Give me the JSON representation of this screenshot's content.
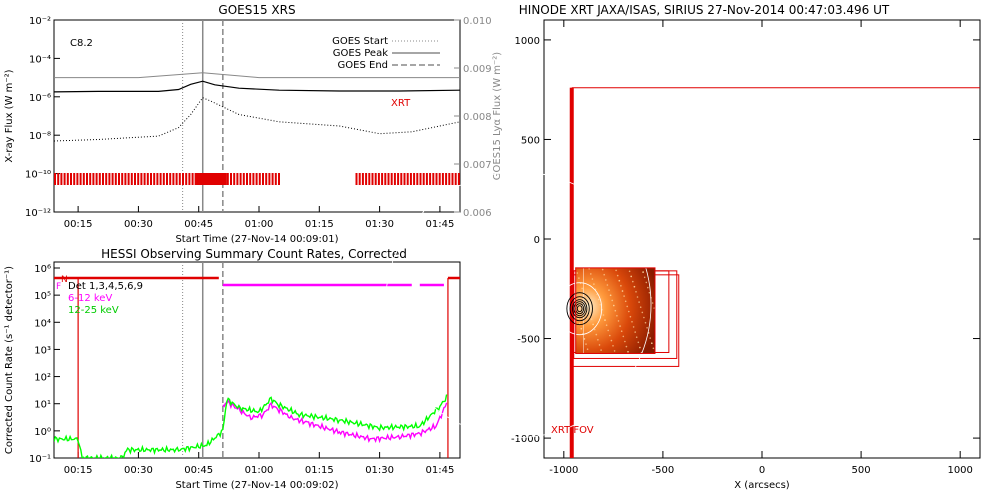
{
  "chart_data": [
    {
      "type": "line",
      "title": "GOES15 XRS",
      "xlabel": "Start Time (27-Nov-14 00:09:01)",
      "ylabel": "X-ray Flux (W m⁻²)",
      "y2label": "GOES15 Lyα Flux (W m⁻²)",
      "y_scale": "log",
      "ylim": [
        1e-12,
        0.01
      ],
      "y_ticks": [
        "10⁻²",
        "10⁻⁴",
        "10⁻⁶",
        "10⁻⁸",
        "10⁻¹⁰",
        "10⁻¹²"
      ],
      "y2lim": [
        0.006,
        0.01
      ],
      "y2_ticks": [
        "0.010",
        "0.009",
        "0.008",
        "0.007",
        "0.006"
      ],
      "xlim": [
        "00:09",
        "01:50"
      ],
      "x_ticks": [
        "00:15",
        "00:30",
        "00:45",
        "01:00",
        "01:15",
        "01:30",
        "01:45"
      ],
      "flare_class": "C8.2",
      "legend": [
        "GOES Start",
        "GOES Peak",
        "GOES End"
      ],
      "legend_position": "top-right",
      "annotation": "XRT",
      "markers": {
        "start": "00:41",
        "peak": "00:46",
        "end": "00:51"
      },
      "series": [
        {
          "name": "",
          "x": [
            "00:09",
            "00:20",
            "00:35",
            "00:40",
            "00:43",
            "00:46",
            "00:49",
            "00:55",
            "01:05",
            "01:20",
            "01:35",
            "01:50"
          ],
          "y": [
            1.8e-06,
            1.9e-06,
            1.9e-06,
            2.4e-06,
            4.5e-06,
            6.5e-06,
            4.2e-06,
            2.8e-06,
            2.2e-06,
            2e-06,
            2e-06,
            2.2e-06
          ]
        },
        {
          "name": "",
          "x": [
            "00:09",
            "00:20",
            "00:35",
            "00:40",
            "00:43",
            "00:46",
            "00:48",
            "00:55",
            "01:05",
            "01:20",
            "01:30",
            "01:38",
            "01:50"
          ],
          "y": [
            5e-09,
            6e-09,
            9e-09,
            2.5e-08,
            1.2e-07,
            9e-07,
            6e-07,
            1.2e-07,
            5e-08,
            3e-08,
            1.2e-08,
            1.5e-08,
            5e-08
          ]
        },
        {
          "name": "",
          "axis": "y2",
          "x": [
            "00:09",
            "00:30",
            "00:46",
            "01:00",
            "01:30",
            "01:50"
          ],
          "y": [
            0.0088,
            0.0088,
            0.0089,
            0.0088,
            0.0088,
            0.0088
          ]
        }
      ],
      "xrt_observations": [
        [
          "00:09",
          "01:05"
        ],
        [
          "01:24",
          "01:50"
        ]
      ]
    },
    {
      "type": "line",
      "title": "HESSI Observing Summary Count Rates, Corrected",
      "xlabel": "Start Time (27-Nov-14 00:09:02)",
      "ylabel": "Corrected Count Rate (s⁻¹ detector⁻¹)",
      "y_scale": "log",
      "ylim": [
        0.1,
        1000000.0
      ],
      "y_ticks": [
        "10⁶",
        "10⁵",
        "10⁴",
        "10³",
        "10²",
        "10¹",
        "10⁰",
        "10⁻¹"
      ],
      "xlim": [
        "00:09",
        "01:50"
      ],
      "x_ticks": [
        "00:15",
        "00:30",
        "00:45",
        "01:00",
        "01:15",
        "01:30",
        "01:45"
      ],
      "legend": [
        "Det 1,3,4,5,6,9",
        "6-12 keV",
        "12-25 keV"
      ],
      "flags": [
        "N",
        "F"
      ],
      "series": [
        {
          "name": "6-12 keV",
          "color": "#ff00ff",
          "x": [
            "00:51",
            "00:52",
            "00:55",
            "00:58",
            "01:01",
            "01:03",
            "01:05",
            "01:08",
            "01:12",
            "01:20",
            "01:28",
            "01:35",
            "01:40",
            "01:44",
            "01:46",
            "01:47"
          ],
          "y": [
            8,
            12,
            6,
            3,
            4,
            9,
            6,
            3,
            2,
            0.9,
            0.5,
            0.6,
            0.8,
            1.5,
            6,
            15
          ]
        },
        {
          "name": "12-25 keV",
          "color": "#00ff00",
          "x": [
            "00:09",
            "00:15",
            "00:16",
            "00:26",
            "00:27",
            "00:40",
            "00:47",
            "00:51",
            "00:52",
            "00:55",
            "01:00",
            "01:03",
            "01:05",
            "01:10",
            "01:20",
            "01:30",
            "01:40",
            "01:45",
            "01:47"
          ],
          "y": [
            0.5,
            0.5,
            0.1,
            0.1,
            0.2,
            0.2,
            0.3,
            1.0,
            15,
            7,
            5,
            15,
            9,
            4,
            2.5,
            1.3,
            1.5,
            8,
            20
          ]
        }
      ]
    },
    {
      "type": "scatter",
      "title": "HINODE XRT JAXA/ISAS, SIRIUS 27-Nov-2014 00:47:03.496 UT",
      "xlabel": "X (arcsecs)",
      "ylabel": "",
      "xlim": [
        -1100,
        1100
      ],
      "ylim": [
        -1100,
        1100
      ],
      "x_ticks": [
        "-1000",
        "-500",
        "0",
        "500",
        "1000"
      ],
      "y_ticks": [
        "1000",
        "500",
        "0",
        "-500",
        "-1000"
      ],
      "annotation": "XRT FOV",
      "fov_box": {
        "x": [
          -960,
          1100
        ],
        "y": [
          -1100,
          760
        ]
      },
      "image_center": [
        -740,
        -360
      ],
      "image_size": [
        400,
        430
      ]
    }
  ]
}
